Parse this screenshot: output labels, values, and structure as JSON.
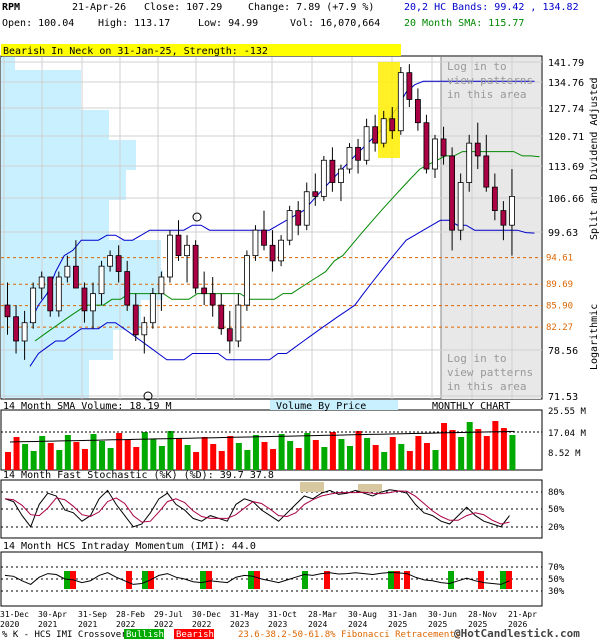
{
  "header": {
    "symbol": "RPM",
    "date": "21-Apr-26",
    "close": "Close: 107.29",
    "change": "Change: 7.89 (+7.9 %)",
    "open": "Open: 100.04",
    "high": "High: 113.17",
    "low": "Low: 94.99",
    "vol": "Vol: 16,070,664",
    "bands": "20,2 HC Bands: 99.42 , 134.82",
    "sma": "20 Month SMA: 115.77"
  },
  "pattern_banner": "Bearish In Neck on 31-Jan-25, Strength: -132",
  "login_text_top": [
    "Log in to",
    "view patterns",
    "in this area"
  ],
  "login_text_bottom": [
    "Log in to",
    "view patterns",
    "in this area"
  ],
  "right_axis_label": "Split and Dividend Adjusted",
  "log_label": "Logarithmic",
  "colors": {
    "up": "#00aa00",
    "down": "#ff0000",
    "candle_up": "#ffffff",
    "candle_down": "#aa0044",
    "bands": "#0000cc",
    "sma": "#008800",
    "fib": "#dd6600",
    "vbp": "#c8f0ff"
  },
  "chart_data": {
    "type": "candlestick",
    "price_axis": {
      "scale": "log",
      "ticks": [
        "141.79",
        "134.76",
        "127.74",
        "120.71",
        "113.69",
        "106.66",
        "99.63",
        "78.56",
        "71.53"
      ]
    },
    "fib_levels": [
      "94.61",
      "89.69",
      "85.90",
      "82.27"
    ],
    "x_labels": [
      "31-Dec\n2020",
      "30-Apr\n2021",
      "31-Sep\n2021",
      "28-Feb\n2022",
      "29-Jul\n2022",
      "30-Dec\n2022",
      "31-May\n2023",
      "31-Oct\n2023",
      "28-Mar\n2024",
      "30-Aug\n2024",
      "31-Jan\n2025",
      "30-Jun\n2025",
      "28-Nov\n2025",
      "21-Apr\n2026"
    ],
    "volume": {
      "title": "14 Month SMA Volume: 18.19 M",
      "vbp_label": "Volume By Price",
      "chart_label": "MONTHLY CHART",
      "ticks": [
        "25.55 M",
        "17.04 M",
        "8.52 M"
      ]
    },
    "stochastic": {
      "title": "14 Month Fast Stochastic (%K) (%D): 39.7 37.8",
      "ticks": [
        "80%",
        "50%",
        "20%"
      ]
    },
    "momentum": {
      "title": "14 Month HCS Intraday Momentum (IMI): 44.0",
      "ticks": [
        "70%",
        "50%",
        "30%"
      ]
    }
  },
  "legend": {
    "k_label": "% K - HCS IMI Crossover,",
    "bullish": "Bullish",
    "bearish": "Bearish",
    "fib_text": "23.6-38.2-50-61.8% Fibonacci Retracements",
    "copyright": "@HotCandlestick.com"
  }
}
